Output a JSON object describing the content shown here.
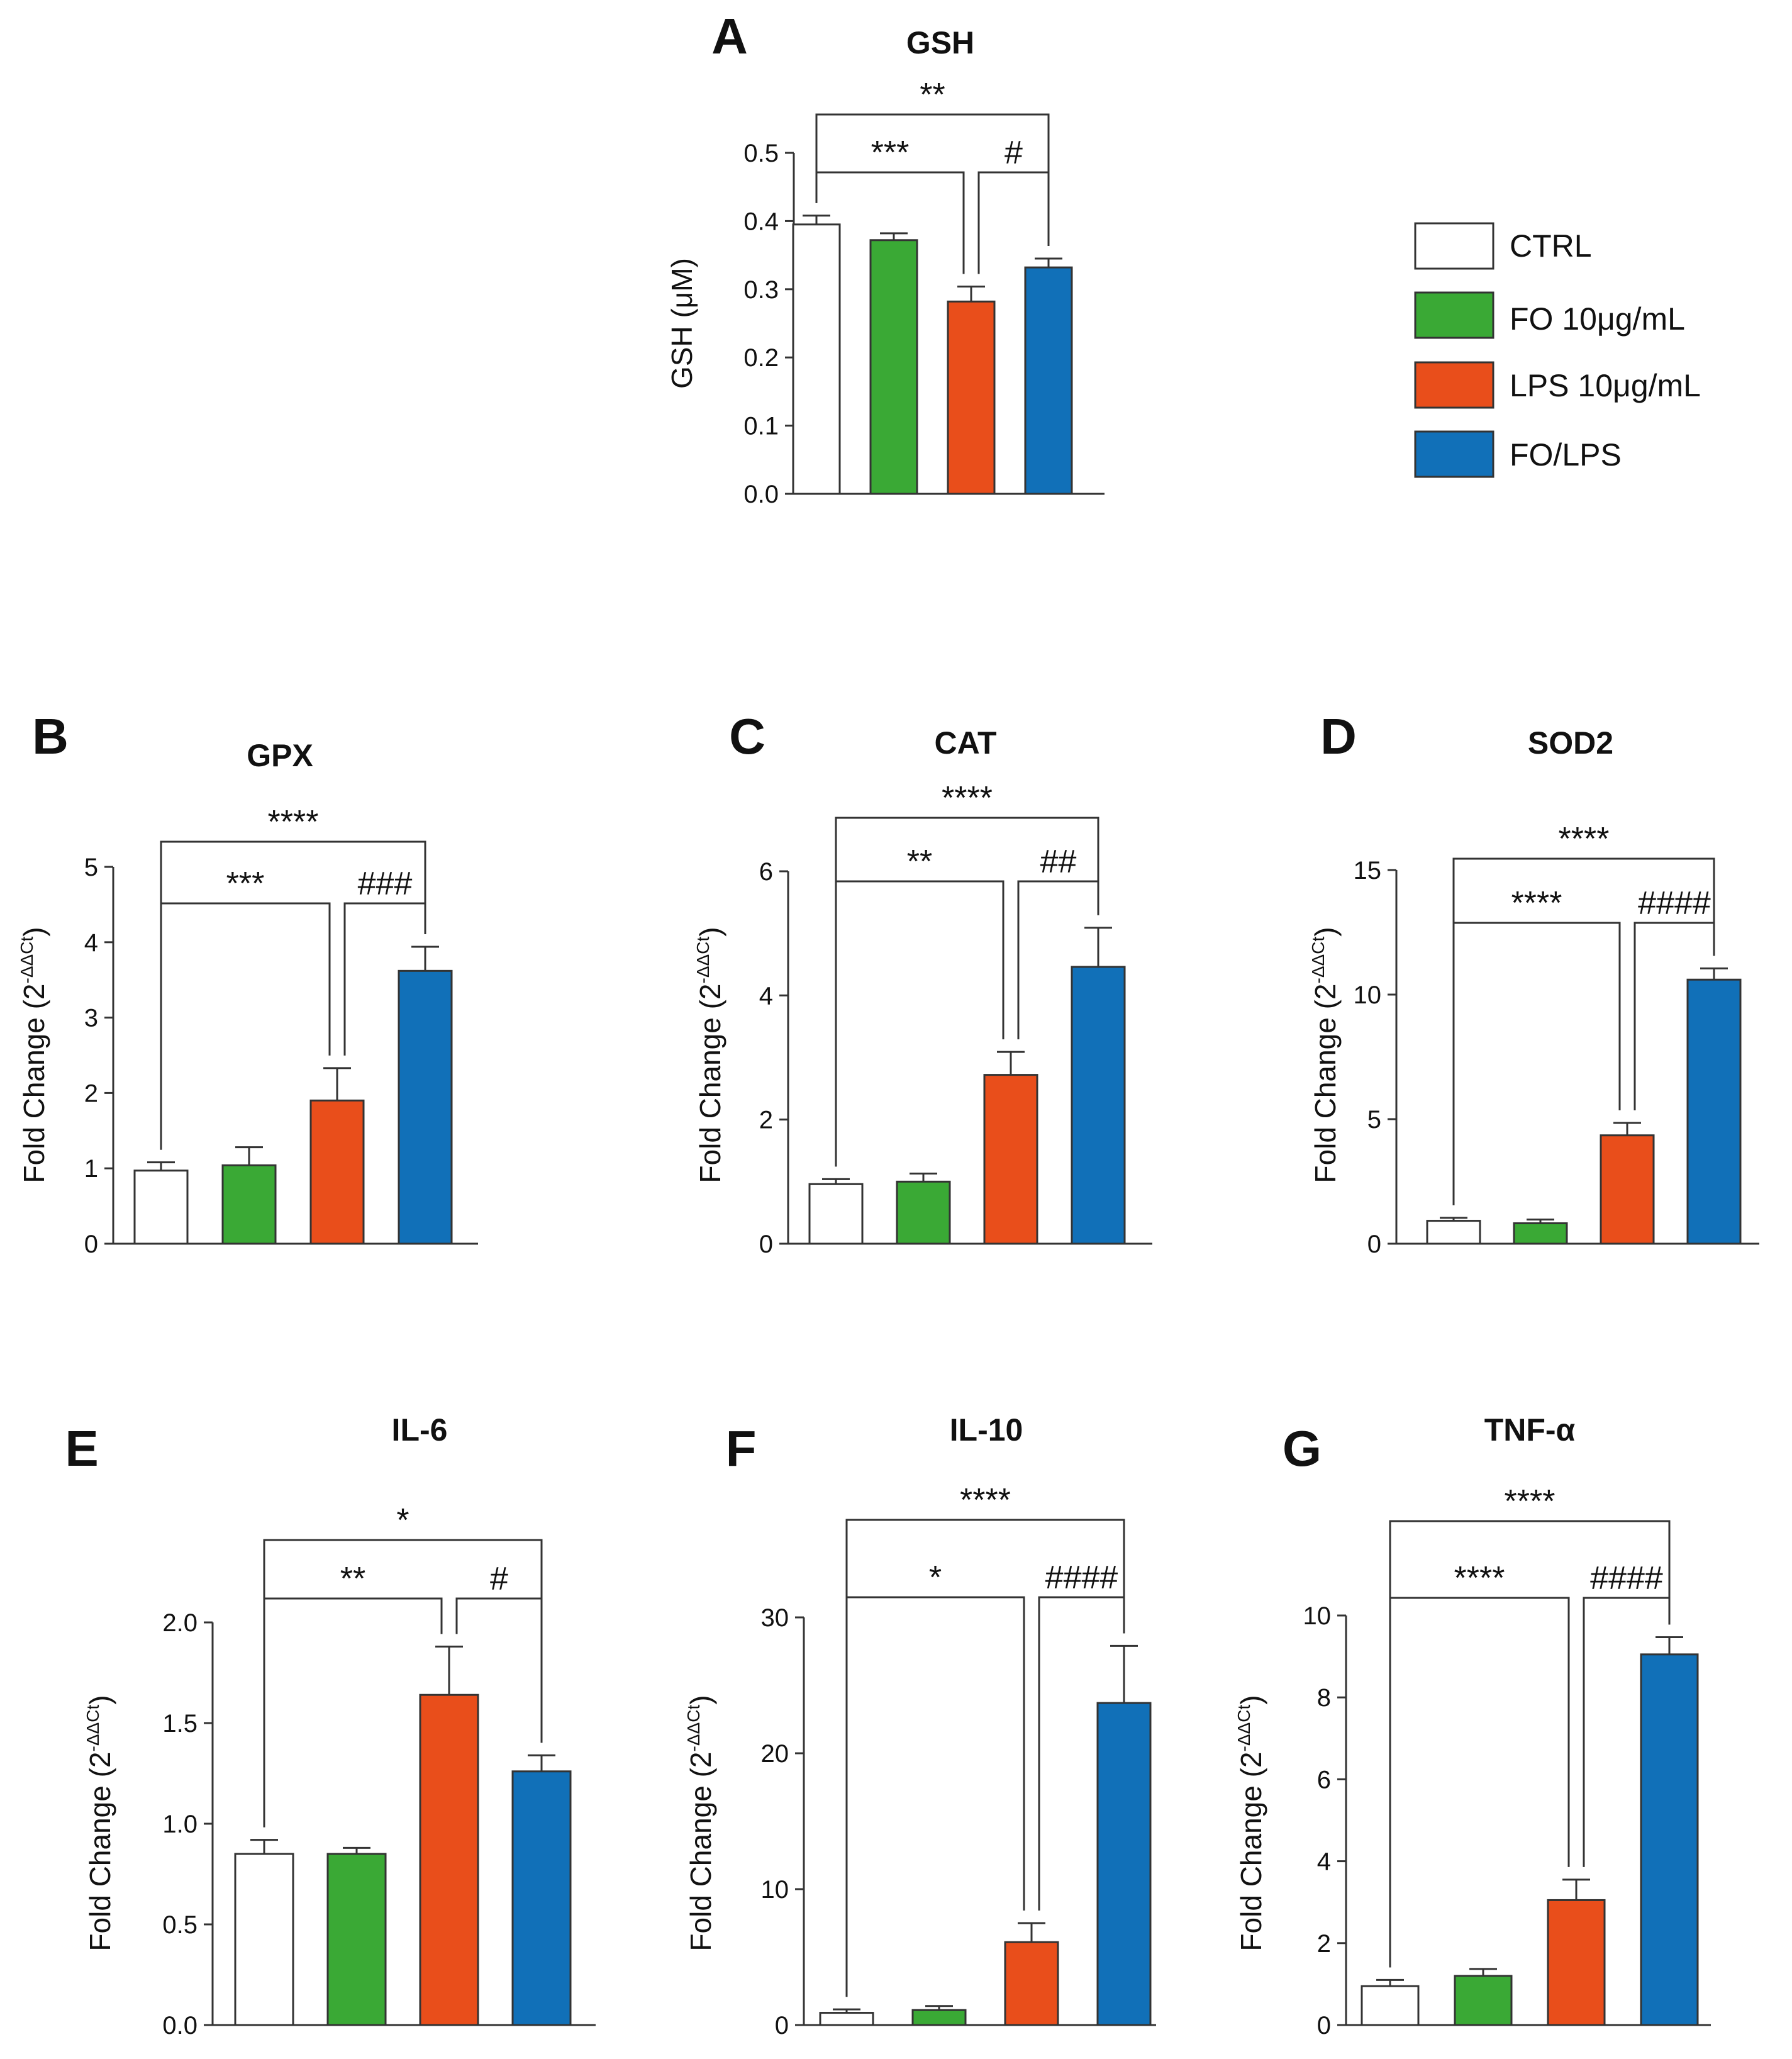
{
  "legend": [
    {
      "label": "CTRL",
      "color": "#ffffff"
    },
    {
      "label": "FO 10μg/mL",
      "color": "#3aa935"
    },
    {
      "label": "LPS 10μg/mL",
      "color": "#e94e1b"
    },
    {
      "label": "FO/LPS",
      "color": "#1170b8"
    }
  ],
  "colors": {
    "CTRL": "#ffffff",
    "FO": "#3aa935",
    "LPS": "#e94e1b",
    "FOLPS": "#1170b8",
    "axis": "#333333"
  },
  "chart_data": [
    {
      "id": "A",
      "letter": "A",
      "title": "GSH",
      "type": "bar",
      "ylabel": "GSH (μM)",
      "ylabel_sup": "",
      "ylim": [
        0,
        0.5
      ],
      "yticks": [
        "0.0",
        "0.1",
        "0.2",
        "0.3",
        "0.4",
        "0.5"
      ],
      "categories": [
        "CTRL",
        "FO 10μg/mL",
        "LPS 10μg/mL",
        "FO/LPS"
      ],
      "values": [
        0.395,
        0.372,
        0.282,
        0.332
      ],
      "errors": [
        0.013,
        0.01,
        0.022,
        0.013
      ],
      "significance": [
        {
          "from": 0,
          "to": 3,
          "label": "**"
        },
        {
          "from": 0,
          "to": 2,
          "label": "***"
        },
        {
          "from": 2,
          "to": 3,
          "label": "#"
        }
      ]
    },
    {
      "id": "B",
      "letter": "B",
      "title": "GPX",
      "type": "bar",
      "ylabel": "Fold Change (2",
      "ylabel_sup": "-ΔΔCt",
      "ylim": [
        0,
        5
      ],
      "yticks": [
        "0",
        "1",
        "2",
        "3",
        "4",
        "5"
      ],
      "categories": [
        "CTRL",
        "FO 10μg/mL",
        "LPS 10μg/mL",
        "FO/LPS"
      ],
      "values": [
        0.97,
        1.04,
        1.9,
        3.62
      ],
      "errors": [
        0.11,
        0.24,
        0.43,
        0.32
      ],
      "significance": [
        {
          "from": 0,
          "to": 3,
          "label": "****"
        },
        {
          "from": 0,
          "to": 2,
          "label": "***"
        },
        {
          "from": 2,
          "to": 3,
          "label": "###"
        }
      ]
    },
    {
      "id": "C",
      "letter": "C",
      "title": "CAT",
      "type": "bar",
      "ylabel": "Fold Change (2",
      "ylabel_sup": "-ΔΔCt",
      "ylim": [
        0,
        6
      ],
      "yticks": [
        "0",
        "2",
        "4",
        "6"
      ],
      "categories": [
        "CTRL",
        "FO 10μg/mL",
        "LPS 10μg/mL",
        "FO/LPS"
      ],
      "values": [
        0.96,
        1.0,
        2.72,
        4.46
      ],
      "errors": [
        0.08,
        0.13,
        0.37,
        0.63
      ],
      "significance": [
        {
          "from": 0,
          "to": 3,
          "label": "****"
        },
        {
          "from": 0,
          "to": 2,
          "label": "**"
        },
        {
          "from": 2,
          "to": 3,
          "label": "##"
        }
      ]
    },
    {
      "id": "D",
      "letter": "D",
      "title": "SOD2",
      "type": "bar",
      "ylabel": "Fold Change (2",
      "ylabel_sup": "-ΔΔCt",
      "ylim": [
        0,
        15
      ],
      "yticks": [
        "0",
        "5",
        "10",
        "15"
      ],
      "categories": [
        "CTRL",
        "FO 10μg/mL",
        "LPS 10μg/mL",
        "FO/LPS"
      ],
      "values": [
        0.92,
        0.82,
        4.35,
        10.6
      ],
      "errors": [
        0.12,
        0.15,
        0.5,
        0.45
      ],
      "significance": [
        {
          "from": 0,
          "to": 3,
          "label": "****"
        },
        {
          "from": 0,
          "to": 2,
          "label": "****"
        },
        {
          "from": 2,
          "to": 3,
          "label": "####"
        }
      ]
    },
    {
      "id": "E",
      "letter": "E",
      "title": "IL-6",
      "type": "bar",
      "ylabel": "Fold Change (2",
      "ylabel_sup": "-ΔΔCt",
      "ylim": [
        0,
        2.0
      ],
      "yticks": [
        "0.0",
        "0.5",
        "1.0",
        "1.5",
        "2.0"
      ],
      "categories": [
        "CTRL",
        "FO 10μg/mL",
        "LPS 10μg/mL",
        "FO/LPS"
      ],
      "values": [
        0.85,
        0.85,
        1.64,
        1.26
      ],
      "errors": [
        0.07,
        0.03,
        0.24,
        0.08
      ],
      "significance": [
        {
          "from": 0,
          "to": 3,
          "label": "*"
        },
        {
          "from": 0,
          "to": 2,
          "label": "**"
        },
        {
          "from": 2,
          "to": 3,
          "label": "#"
        }
      ]
    },
    {
      "id": "F",
      "letter": "F",
      "title": "IL-10",
      "type": "bar",
      "ylabel": "Fold Change (2",
      "ylabel_sup": "-ΔΔCt",
      "ylim": [
        0,
        30
      ],
      "yticks": [
        "0",
        "10",
        "20",
        "30"
      ],
      "categories": [
        "CTRL",
        "FO 10μg/mL",
        "LPS 10μg/mL",
        "FO/LPS"
      ],
      "values": [
        0.9,
        1.1,
        6.1,
        23.7
      ],
      "errors": [
        0.25,
        0.3,
        1.4,
        4.2
      ],
      "significance": [
        {
          "from": 0,
          "to": 3,
          "label": "****"
        },
        {
          "from": 0,
          "to": 2,
          "label": "*"
        },
        {
          "from": 2,
          "to": 3,
          "label": "####"
        }
      ]
    },
    {
      "id": "G",
      "letter": "G",
      "title": "TNF-α",
      "type": "bar",
      "ylabel": "Fold Change (2",
      "ylabel_sup": "-ΔΔCt",
      "ylim": [
        0,
        10
      ],
      "yticks": [
        "0",
        "2",
        "4",
        "6",
        "8",
        "10"
      ],
      "categories": [
        "CTRL",
        "FO 10μg/mL",
        "LPS 10μg/mL",
        "FO/LPS"
      ],
      "values": [
        0.95,
        1.2,
        3.05,
        9.05
      ],
      "errors": [
        0.15,
        0.17,
        0.5,
        0.42
      ],
      "significance": [
        {
          "from": 0,
          "to": 3,
          "label": "****"
        },
        {
          "from": 0,
          "to": 2,
          "label": "****"
        },
        {
          "from": 2,
          "to": 3,
          "label": "####"
        }
      ]
    }
  ]
}
